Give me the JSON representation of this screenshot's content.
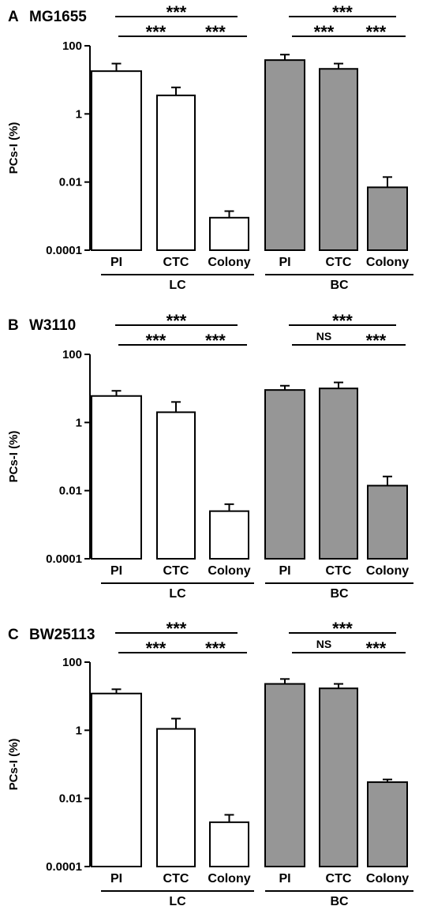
{
  "chart_data": [
    {
      "type": "bar",
      "panel_letter": "A",
      "title": "MG1655",
      "ylabel": "PCs-I (%)",
      "yscale": "log",
      "ylim": [
        0.0001,
        100
      ],
      "yticks": [
        0.0001,
        0.01,
        1,
        100
      ],
      "ytick_labels": [
        "0.0001",
        "0.01",
        "1",
        "100"
      ],
      "categories": [
        "PI",
        "CTC",
        "Colony",
        "PI",
        "CTC",
        "Colony"
      ],
      "groups": [
        {
          "name": "LC",
          "indices": [
            0,
            1,
            2
          ]
        },
        {
          "name": "BC",
          "indices": [
            3,
            4,
            5
          ]
        }
      ],
      "values": [
        18,
        3.5,
        0.0009,
        38,
        21,
        0.007
      ],
      "errors_upper": [
        30,
        6,
        0.0014,
        55,
        30,
        0.014
      ],
      "bar_colors": [
        "#ffffff",
        "#ffffff",
        "#ffffff",
        "#969696",
        "#969696",
        "#969696"
      ],
      "significance": [
        {
          "from": 0,
          "to": 1,
          "label": "***",
          "level": 1
        },
        {
          "from": 1,
          "to": 2,
          "label": "***",
          "level": 1
        },
        {
          "from": 0,
          "to": 2,
          "label": "***",
          "level": 2
        },
        {
          "from": 3,
          "to": 4,
          "label": "***",
          "level": 1
        },
        {
          "from": 4,
          "to": 5,
          "label": "***",
          "level": 1
        },
        {
          "from": 3,
          "to": 5,
          "label": "***",
          "level": 2
        }
      ]
    },
    {
      "type": "bar",
      "panel_letter": "B",
      "title": "W3110",
      "ylabel": "PCs-I (%)",
      "yscale": "log",
      "ylim": [
        0.0001,
        100
      ],
      "yticks": [
        0.0001,
        0.01,
        1,
        100
      ],
      "ytick_labels": [
        "0.0001",
        "0.01",
        "1",
        "100"
      ],
      "categories": [
        "PI",
        "CTC",
        "Colony",
        "PI",
        "CTC",
        "Colony"
      ],
      "groups": [
        {
          "name": "LC",
          "indices": [
            0,
            1,
            2
          ]
        },
        {
          "name": "BC",
          "indices": [
            3,
            4,
            5
          ]
        }
      ],
      "values": [
        6,
        2,
        0.0025,
        9,
        10,
        0.014
      ],
      "errors_upper": [
        8.5,
        4,
        0.004,
        12,
        15,
        0.026
      ],
      "bar_colors": [
        "#ffffff",
        "#ffffff",
        "#ffffff",
        "#969696",
        "#969696",
        "#969696"
      ],
      "significance": [
        {
          "from": 0,
          "to": 1,
          "label": "***",
          "level": 1
        },
        {
          "from": 1,
          "to": 2,
          "label": "***",
          "level": 1
        },
        {
          "from": 0,
          "to": 2,
          "label": "***",
          "level": 2
        },
        {
          "from": 3,
          "to": 4,
          "label": "NS",
          "level": 1
        },
        {
          "from": 4,
          "to": 5,
          "label": "***",
          "level": 1
        },
        {
          "from": 3,
          "to": 5,
          "label": "***",
          "level": 2
        }
      ]
    },
    {
      "type": "bar",
      "panel_letter": "C",
      "title": "BW25113",
      "ylabel": "PCs-I (%)",
      "yscale": "log",
      "ylim": [
        0.0001,
        100
      ],
      "yticks": [
        0.0001,
        0.01,
        1,
        100
      ],
      "ytick_labels": [
        "0.0001",
        "0.01",
        "1",
        "100"
      ],
      "categories": [
        "PI",
        "CTC",
        "Colony",
        "PI",
        "CTC",
        "Colony"
      ],
      "groups": [
        {
          "name": "LC",
          "indices": [
            0,
            1,
            2
          ]
        },
        {
          "name": "BC",
          "indices": [
            3,
            4,
            5
          ]
        }
      ],
      "values": [
        12,
        1.1,
        0.002,
        23,
        17,
        0.03
      ],
      "errors_upper": [
        16,
        2.2,
        0.0033,
        32,
        23,
        0.036
      ],
      "bar_colors": [
        "#ffffff",
        "#ffffff",
        "#ffffff",
        "#969696",
        "#969696",
        "#969696"
      ],
      "significance": [
        {
          "from": 0,
          "to": 1,
          "label": "***",
          "level": 1
        },
        {
          "from": 1,
          "to": 2,
          "label": "***",
          "level": 1
        },
        {
          "from": 0,
          "to": 2,
          "label": "***",
          "level": 2
        },
        {
          "from": 3,
          "to": 4,
          "label": "NS",
          "level": 1
        },
        {
          "from": 4,
          "to": 5,
          "label": "***",
          "level": 1
        },
        {
          "from": 3,
          "to": 5,
          "label": "***",
          "level": 2
        }
      ]
    }
  ]
}
